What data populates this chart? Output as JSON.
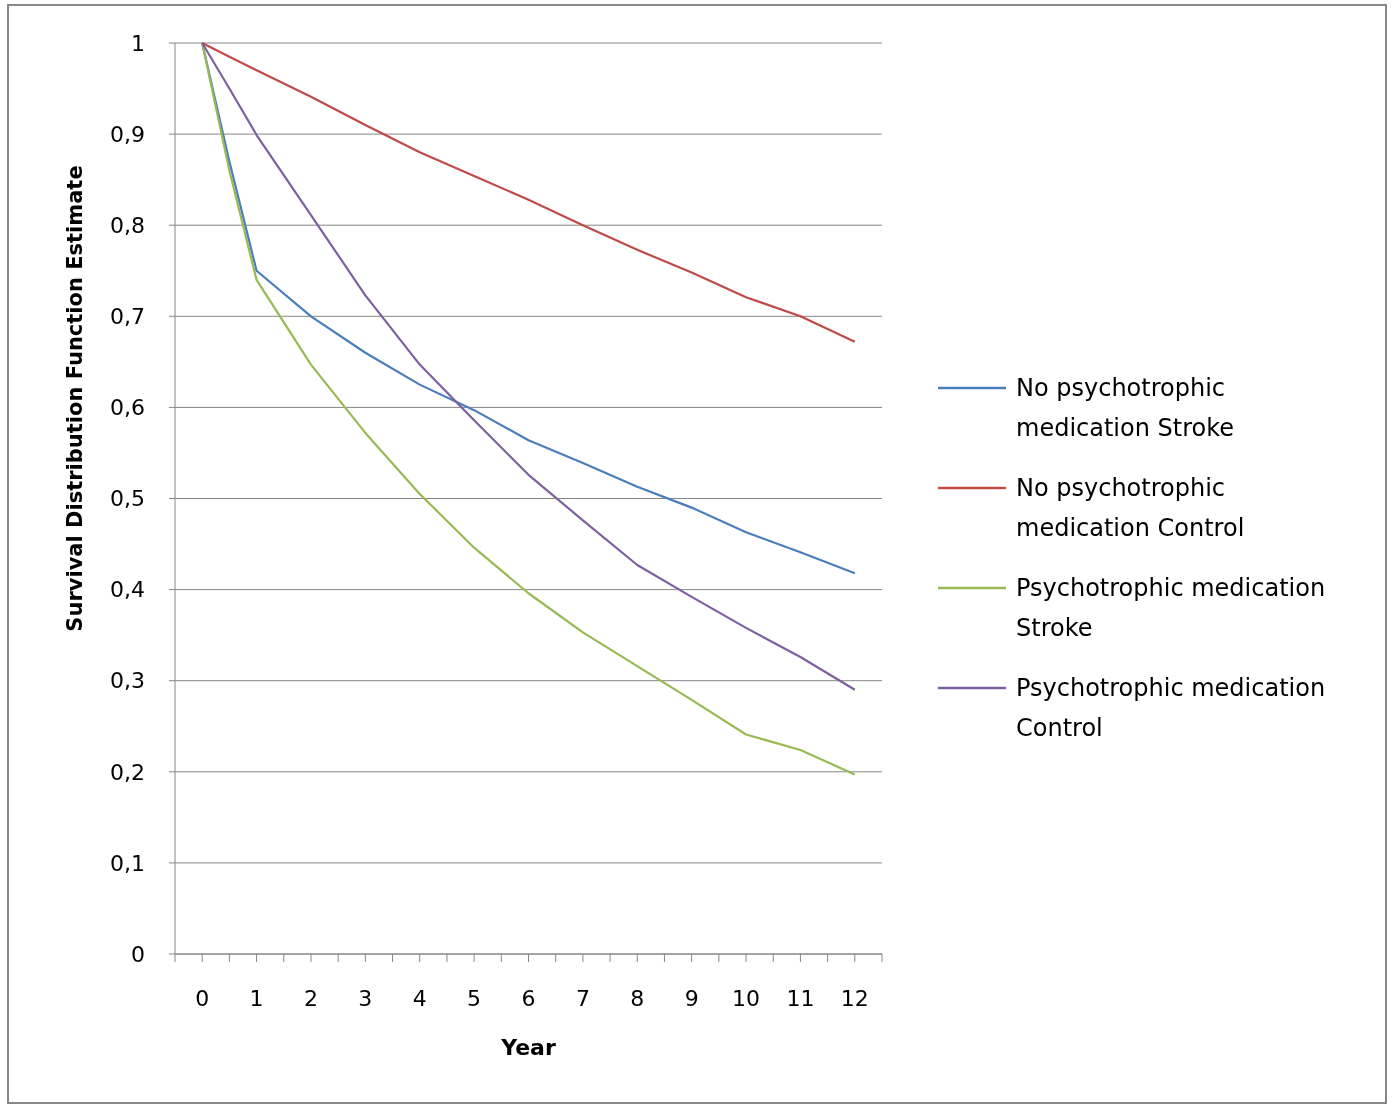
{
  "chart_data": {
    "type": "line",
    "xlabel": "Year",
    "ylabel": "Survival Distribution Function Estimate",
    "x": [
      0,
      0.5,
      1,
      2,
      3,
      4,
      5,
      6,
      7,
      8,
      9,
      10,
      11,
      12
    ],
    "xlim": [
      -0.5,
      12.5
    ],
    "xticks": [
      {
        "value": -0.5,
        "label": null
      },
      0,
      {
        "value": 0.5,
        "label": null
      },
      1,
      {
        "value": 1.5,
        "label": null
      },
      2,
      {
        "value": 2.5,
        "label": null
      },
      3,
      {
        "value": 3.5,
        "label": null
      },
      4,
      {
        "value": 4.5,
        "label": null
      },
      5,
      {
        "value": 5.5,
        "label": null
      },
      6,
      {
        "value": 6.5,
        "label": null
      },
      7,
      {
        "value": 7.5,
        "label": null
      },
      8,
      {
        "value": 8.5,
        "label": null
      },
      9,
      {
        "value": 9.5,
        "label": null
      },
      10,
      {
        "value": 10.5,
        "label": null
      },
      11,
      {
        "value": 11.5,
        "label": null
      },
      12,
      {
        "value": 12.5,
        "label": null
      }
    ],
    "ylim": [
      0,
      1
    ],
    "yticks": [
      0,
      {
        "value": 0.1,
        "label": "0,1"
      },
      {
        "value": 0.2,
        "label": "0,2"
      },
      {
        "value": 0.3,
        "label": "0,3"
      },
      {
        "value": 0.4,
        "label": "0,4"
      },
      {
        "value": 0.5,
        "label": "0,5"
      },
      {
        "value": 0.6,
        "label": "0,6"
      },
      {
        "value": 0.7,
        "label": "0,7"
      },
      {
        "value": 0.8,
        "label": "0,8"
      },
      {
        "value": 0.9,
        "label": "0,9"
      },
      1
    ],
    "grid": "y",
    "legend": "right",
    "marker": "none",
    "line_style": "solid",
    "series": [
      {
        "name": "No psychotrophic medication Stroke",
        "color": "#4a7ebb",
        "values": [
          1,
          0.87,
          0.75,
          0.7,
          0.66,
          0.625,
          0.597,
          0.564,
          0.539,
          0.513,
          0.49,
          0.463,
          0.441,
          0.418
        ]
      },
      {
        "name": "No psychotrophic medication Control",
        "color": "#be4b48",
        "values": [
          1,
          0.985,
          0.97,
          0.941,
          0.91,
          0.88,
          0.854,
          0.828,
          0.8,
          0.773,
          0.748,
          0.721,
          0.7,
          0.672
        ]
      },
      {
        "name": "Psychotrophic medication Stroke",
        "color": "#98b954",
        "values": [
          1,
          0.86,
          0.74,
          0.647,
          0.572,
          0.505,
          0.446,
          0.396,
          0.353,
          0.316,
          0.279,
          0.241,
          0.224,
          0.197
        ]
      },
      {
        "name": "Psychotrophic medication Control",
        "color": "#7d60a0",
        "values": [
          1,
          0.95,
          0.899,
          0.811,
          0.723,
          0.647,
          0.586,
          0.526,
          0.476,
          0.427,
          0.392,
          0.358,
          0.326,
          0.29
        ]
      }
    ]
  }
}
